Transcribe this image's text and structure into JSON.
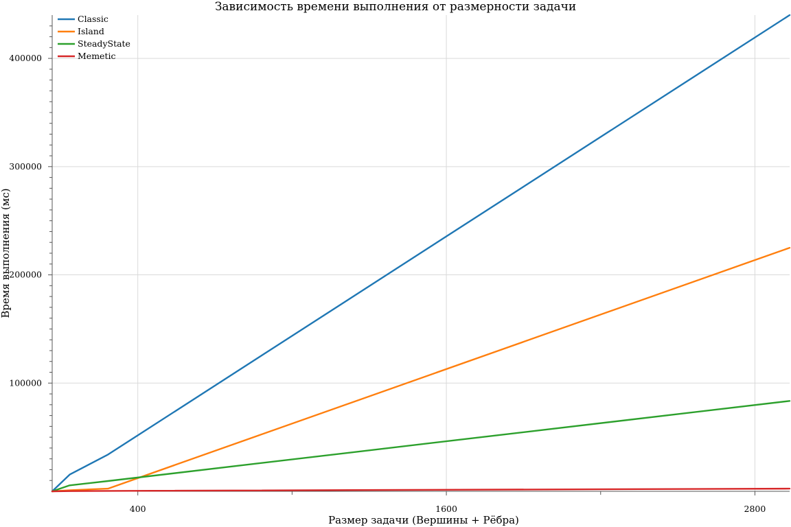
{
  "chart_data": {
    "type": "line",
    "title": "Зависимость времени выполнения от размерности задачи",
    "xlabel": "Размер задачи (Вершины + Рёбра)",
    "ylabel": "Время выполнения (мс)",
    "xlim": [
      67,
      2935
    ],
    "ylim": [
      0,
      440000
    ],
    "x_ticks": [
      400,
      1600,
      2800
    ],
    "x_minor_ticks": [
      1000,
      2200
    ],
    "y_ticks": [
      100000,
      200000,
      300000,
      400000
    ],
    "y_minor_ticks": [
      10000,
      20000,
      30000,
      40000,
      50000,
      60000,
      70000,
      80000,
      90000,
      110000,
      120000,
      130000,
      140000,
      150000,
      160000,
      170000,
      180000,
      190000,
      210000,
      220000,
      230000,
      240000,
      250000,
      260000,
      270000,
      280000,
      290000,
      310000,
      320000,
      330000,
      340000,
      350000,
      360000,
      370000,
      380000,
      390000,
      410000,
      420000,
      430000
    ],
    "grid": true,
    "legend_position": "top-left",
    "series": [
      {
        "name": "Classic",
        "color": "#1f77b4",
        "x": [
          67,
          135,
          284,
          2935
        ],
        "y": [
          0,
          15500,
          34000,
          440000
        ]
      },
      {
        "name": "Island",
        "color": "#ff7f0e",
        "x": [
          67,
          135,
          284,
          2935
        ],
        "y": [
          0,
          1000,
          2500,
          225000
        ]
      },
      {
        "name": "SteadyState",
        "color": "#2ca02c",
        "x": [
          67,
          135,
          284,
          2935
        ],
        "y": [
          0,
          5500,
          9500,
          83500
        ]
      },
      {
        "name": "Memetic",
        "color": "#d62728",
        "x": [
          67,
          135,
          284,
          2935
        ],
        "y": [
          0,
          200,
          400,
          2500
        ]
      }
    ]
  }
}
